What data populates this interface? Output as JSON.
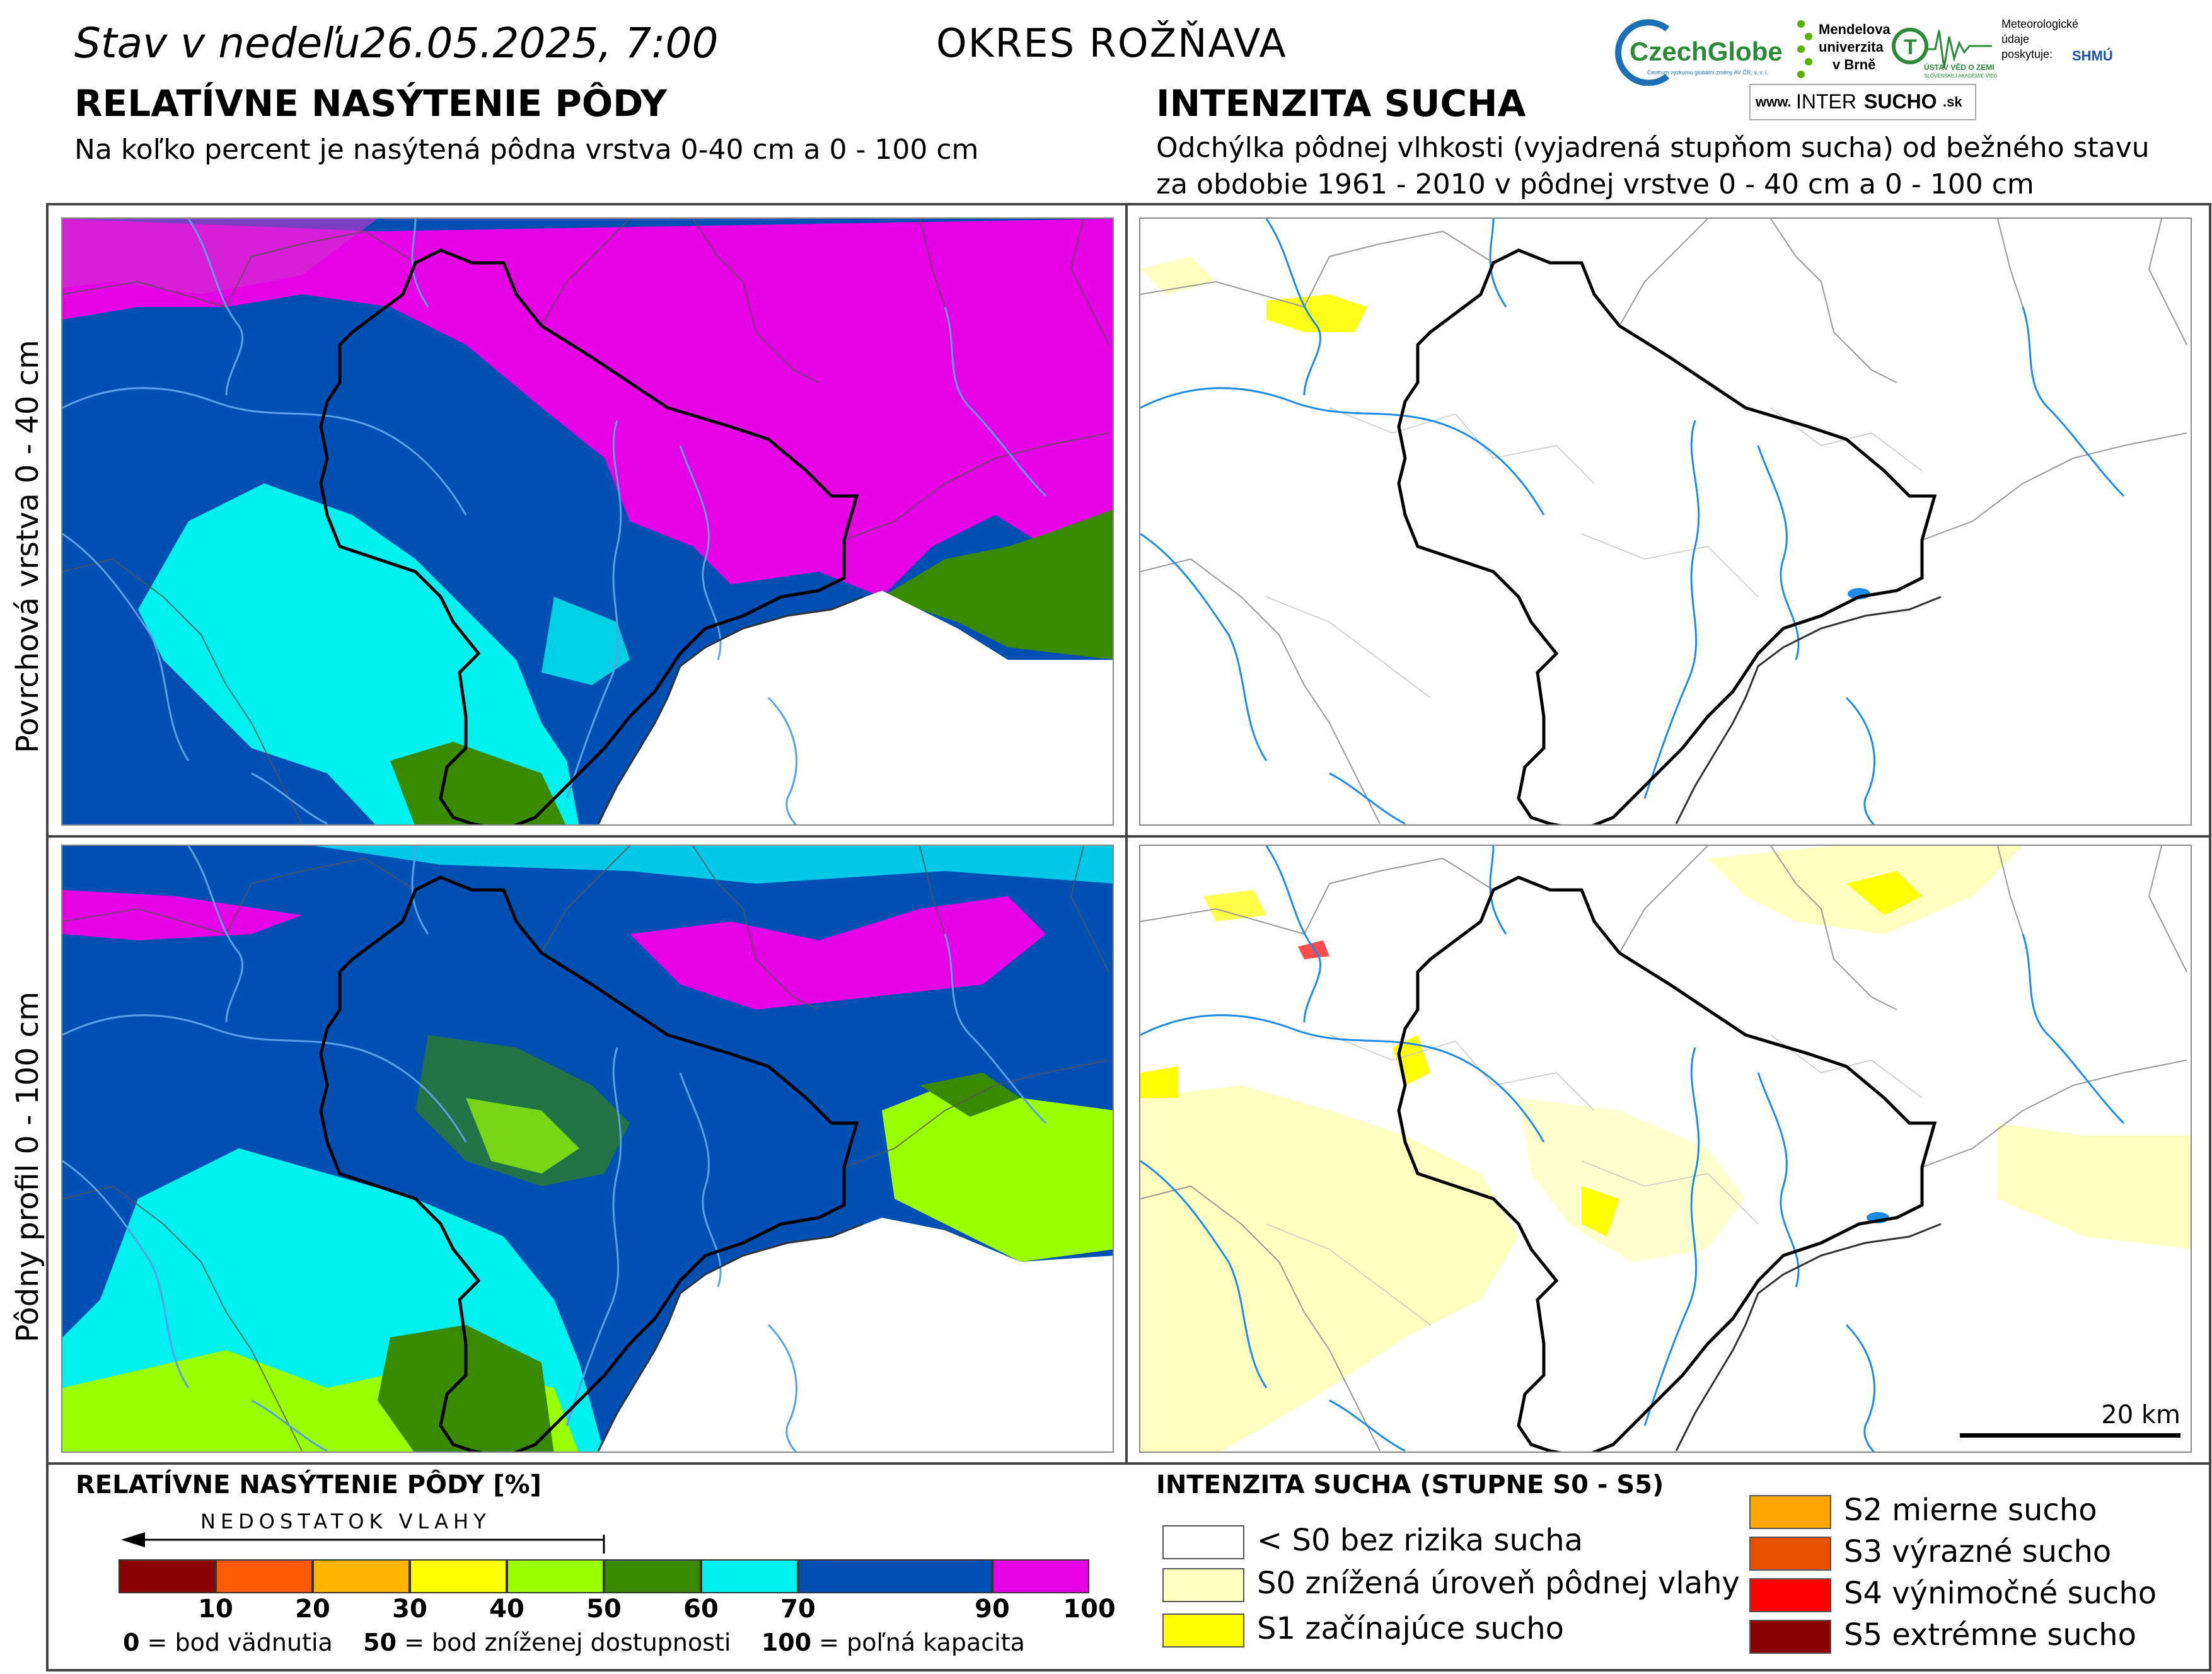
{
  "header": {
    "stav": "Stav v nedeľu",
    "date": "26.05.2025, 7:00",
    "okres": "OKRES  ROŽŇAVA"
  },
  "left_panel": {
    "title": "RELATÍVNE NASÝTENIE PÔDY",
    "subtitle": "Na koľko percent je nasýtená pôdna vrstva 0-40 cm a 0 - 100 cm"
  },
  "right_panel": {
    "title": "INTENZITA SUCHA",
    "subtitle_line1": "Odchýlka pôdnej vlhkosti (vyjadrená stupňom sucha) od bežného stavu",
    "subtitle_line2": "za obdobie 1961 - 2010 v pôdnej vrstve 0 - 40 cm a 0 - 100 cm"
  },
  "logos": {
    "czechglobe": "CzechGlobe",
    "czechglobe_sub": "Centrum výzkumu globální změny AV ČR, v. v. i.",
    "mendel_1": "Mendelova",
    "mendel_2": "univerzita",
    "mendel_3": "v Brně",
    "uvgz": "ÚSTAV VĚD O ZEMI",
    "uvgz_sub": "SLOVENSKEJ AKADÉMIE VIED",
    "meteo_1": "Meteorologické",
    "meteo_2": "údaje",
    "meteo_3": "poskytuje:",
    "shmu": "SHMÚ",
    "intersucho_www": "www.",
    "intersucho_a": "INTER",
    "intersucho_b": "SUCHO",
    "intersucho_c": ".sk"
  },
  "row_labels": {
    "top": "Povrchová vrstva 0 - 40 cm",
    "bottom": "Pôdny profil 0 - 100 cm"
  },
  "scale_bar": {
    "label": "20 km"
  },
  "legend_left": {
    "title": "RELATÍVNE NASÝTENIE PÔDY [%]",
    "arrow_label": "NEDOSTATOK VLAHY",
    "classes": [
      {
        "from": 0,
        "to": 10,
        "color": "#8b0000"
      },
      {
        "from": 10,
        "to": 20,
        "color": "#ff5a00"
      },
      {
        "from": 20,
        "to": 30,
        "color": "#ffb400"
      },
      {
        "from": 30,
        "to": 40,
        "color": "#ffff00"
      },
      {
        "from": 40,
        "to": 50,
        "color": "#9cff00"
      },
      {
        "from": 50,
        "to": 60,
        "color": "#3a8a00"
      },
      {
        "from": 60,
        "to": 70,
        "color": "#00f0f0"
      },
      {
        "from": 70,
        "to": 90,
        "color": "#0050b4"
      },
      {
        "from": 90,
        "to": 100,
        "color": "#e600e6"
      }
    ],
    "ticks": [
      "10",
      "20",
      "30",
      "40",
      "50",
      "60",
      "70",
      "90",
      "100"
    ],
    "note_0_num": "0",
    "note_0_text": " = bod vädnutia",
    "note_50_num": "50",
    "note_50_text": " = bod zníženej dostupnosti",
    "note_100_num": "100",
    "note_100_text": " = poľná kapacita"
  },
  "legend_right": {
    "title": "INTENZITA SUCHA (STUPNE S0 - S5)",
    "items": [
      {
        "label": "< S0 bez rizika sucha",
        "color": "#ffffff"
      },
      {
        "label": "S0 znížená úroveň pôdnej vlahy",
        "color": "#ffffc0"
      },
      {
        "label": "S1 začínajúce sucho",
        "color": "#ffff00"
      },
      {
        "label": "S2 mierne sucho",
        "color": "#ffa500"
      },
      {
        "label": "S3 výrazné sucho",
        "color": "#e85000"
      },
      {
        "label": "S4 výnimočné sucho",
        "color": "#ff0000"
      },
      {
        "label": "S5 extrémne sucho",
        "color": "#8b0000"
      }
    ]
  }
}
